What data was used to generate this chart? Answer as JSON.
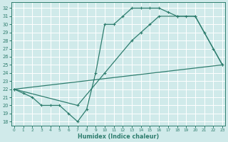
{
  "xlabel": "Humidex (Indice chaleur)",
  "line_color": "#2e7d6e",
  "bg_color": "#d0eaea",
  "grid_color": "#ffffff",
  "xlim": [
    -0.3,
    23.3
  ],
  "ylim": [
    17.5,
    32.7
  ],
  "xticks": [
    0,
    1,
    2,
    3,
    4,
    5,
    6,
    7,
    8,
    9,
    10,
    11,
    12,
    13,
    14,
    15,
    16,
    17,
    18,
    19,
    20,
    21,
    22,
    23
  ],
  "yticks": [
    18,
    19,
    20,
    21,
    22,
    23,
    24,
    25,
    26,
    27,
    28,
    29,
    30,
    31,
    32
  ],
  "line1_x": [
    0,
    1,
    2,
    3,
    4,
    5,
    6,
    7,
    8,
    9,
    10,
    11,
    12,
    13,
    14,
    15,
    16,
    17,
    18,
    19,
    20,
    21,
    22,
    23
  ],
  "line1_y": [
    22,
    21.5,
    21,
    20,
    20,
    20,
    19,
    18,
    19.5,
    24,
    30,
    30,
    31,
    32,
    32,
    32,
    32,
    31.5,
    31,
    31,
    31,
    29,
    27,
    25
  ],
  "line2_x": [
    0,
    7,
    10,
    13,
    14,
    15,
    16,
    18,
    20,
    23
  ],
  "line2_y": [
    22,
    20,
    24,
    28,
    29,
    30,
    31,
    31,
    31,
    25
  ],
  "line3_x": [
    0,
    23
  ],
  "line3_y": [
    22,
    25
  ]
}
